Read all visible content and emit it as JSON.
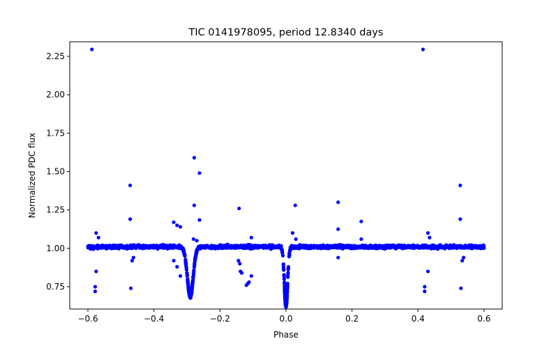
{
  "chart_data": {
    "type": "scatter",
    "title": "TIC 0141978095, period 12.8340 days",
    "xlabel": "Phase",
    "ylabel": "Normalized PDC flux",
    "xlim": [
      -0.655,
      0.655
    ],
    "ylim": [
      0.605,
      2.345
    ],
    "grid": false,
    "legend": "none",
    "color": "#0000ff",
    "xticks": [
      -0.6,
      -0.4,
      -0.2,
      0.0,
      0.2,
      0.4,
      0.6
    ],
    "xtick_labels": [
      "−0.6",
      "−0.4",
      "−0.2",
      "0.0",
      "0.2",
      "0.4",
      "0.6"
    ],
    "yticks": [
      0.75,
      1.0,
      1.25,
      1.5,
      1.75,
      2.0,
      2.25
    ],
    "ytick_labels": [
      "0.75",
      "1.00",
      "1.25",
      "1.50",
      "1.75",
      "2.00",
      "2.25"
    ],
    "baseline": {
      "x_start": -0.6,
      "x_end": 0.6,
      "flux": 1.01,
      "scatter": 0.02
    },
    "dips": [
      {
        "center": -0.29,
        "width": 0.009,
        "depth": 0.32
      },
      {
        "center": 0.0,
        "width": 0.005,
        "depth": 0.38
      }
    ],
    "outliers": [
      [
        -0.588,
        2.295
      ],
      [
        0.415,
        2.295
      ],
      [
        -0.278,
        1.59
      ],
      [
        -0.262,
        1.49
      ],
      [
        -0.472,
        1.41
      ],
      [
        0.528,
        1.41
      ],
      [
        -0.472,
        1.19
      ],
      [
        0.528,
        1.19
      ],
      [
        0.158,
        1.3
      ],
      [
        0.158,
        1.125
      ],
      [
        0.028,
        1.28
      ],
      [
        -0.278,
        1.28
      ],
      [
        -0.142,
        1.26
      ],
      [
        -0.262,
        1.185
      ],
      [
        0.228,
        1.175
      ],
      [
        -0.575,
        1.1
      ],
      [
        -0.568,
        1.07
      ],
      [
        0.43,
        1.1
      ],
      [
        0.435,
        1.07
      ],
      [
        -0.34,
        1.17
      ],
      [
        -0.33,
        1.15
      ],
      [
        -0.32,
        1.14
      ],
      [
        -0.575,
        0.85
      ],
      [
        0.43,
        0.85
      ],
      [
        -0.578,
        0.75
      ],
      [
        -0.578,
        0.72
      ],
      [
        0.42,
        0.75
      ],
      [
        0.42,
        0.72
      ],
      [
        -0.47,
        0.74
      ],
      [
        0.53,
        0.74
      ],
      [
        -0.466,
        0.92
      ],
      [
        -0.462,
        0.94
      ],
      [
        0.534,
        0.92
      ],
      [
        0.538,
        0.94
      ],
      [
        -0.32,
        0.82
      ],
      [
        -0.105,
        0.82
      ],
      [
        -0.12,
        0.76
      ],
      [
        -0.116,
        0.77
      ],
      [
        -0.112,
        0.78
      ],
      [
        -0.138,
        0.85
      ],
      [
        -0.134,
        0.84
      ],
      [
        -0.144,
        0.92
      ],
      [
        -0.14,
        0.9
      ],
      [
        0.158,
        0.94
      ],
      [
        0.228,
        1.06
      ],
      [
        -0.105,
        1.07
      ],
      [
        0.02,
        1.1
      ],
      [
        0.03,
        1.06
      ],
      [
        -0.28,
        1.06
      ],
      [
        -0.27,
        1.05
      ],
      [
        -0.34,
        0.92
      ],
      [
        -0.33,
        0.88
      ]
    ],
    "seed": 141978095
  }
}
